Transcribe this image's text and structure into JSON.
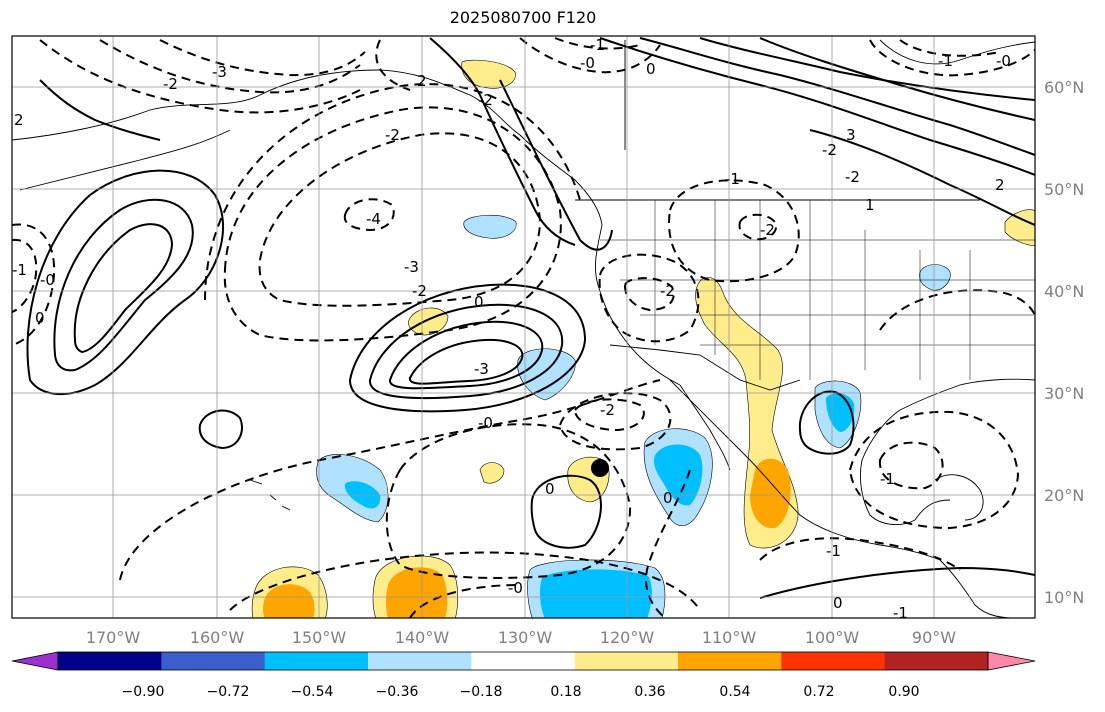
{
  "title": "2025080700 F120",
  "longitude_labels": [
    "170°W",
    "160°W",
    "150°W",
    "140°W",
    "130°W",
    "120°W",
    "110°W",
    "100°W",
    "90°W"
  ],
  "latitude_labels": [
    "60°N",
    "50°N",
    "40°N",
    "30°N",
    "20°N",
    "10°N"
  ],
  "contour_labels": [
    "-3",
    "-2",
    "-1",
    "-0",
    "2",
    "2",
    "0",
    "-2",
    "-0",
    "-1",
    "-2",
    "-4",
    "-3",
    "-2",
    "0",
    "-3",
    "-1",
    "-2",
    "-2",
    "-2",
    "-0",
    "0",
    "0",
    "0",
    "-1",
    "-1",
    "-0",
    "-0",
    "0",
    "-1",
    "3",
    "-2",
    "1",
    "2",
    "-2",
    "-1"
  ],
  "colorbar": {
    "tick_labels": [
      "−0.90",
      "−0.72",
      "−0.54",
      "−0.36",
      "−0.18",
      "0.18",
      "0.36",
      "0.54",
      "0.72",
      "0.90"
    ],
    "colors": [
      "#9b30d0",
      "#00008b",
      "#3a5fcd",
      "#00bfff",
      "#b0e2ff",
      "#ffffff",
      "#ffec8b",
      "#ffa500",
      "#ff3300",
      "#b22222",
      "#ff88aa"
    ]
  },
  "marker": {
    "lon": -122.5,
    "lat": 22.7,
    "color": "#000000"
  },
  "colors": {
    "coast": "#000000",
    "grid": "#999999",
    "axis_label": "#808080",
    "land": "#ffffff"
  }
}
